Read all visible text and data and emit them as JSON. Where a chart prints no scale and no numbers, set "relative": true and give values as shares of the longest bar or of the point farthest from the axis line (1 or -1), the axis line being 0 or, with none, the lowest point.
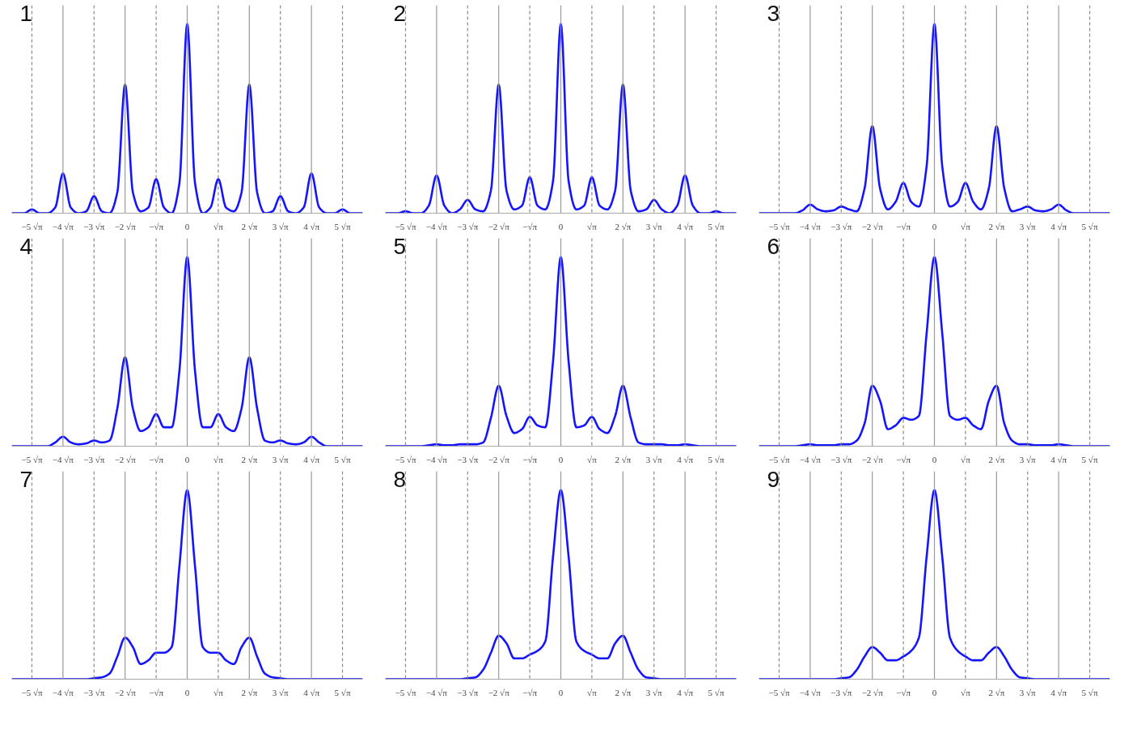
{
  "chart_data": [
    {
      "type": "line",
      "title": "1",
      "relative": true,
      "grid": false,
      "xlim": [
        -5.65,
        5.65
      ],
      "xticks": [
        {
          "value": -5,
          "label": "−5 √π"
        },
        {
          "value": -4,
          "label": "−4 √π"
        },
        {
          "value": -3,
          "label": "−3 √π"
        },
        {
          "value": -2,
          "label": "−2 √π"
        },
        {
          "value": -1,
          "label": "−√π"
        },
        0,
        {
          "value": 1,
          "label": "√π"
        },
        {
          "value": 2,
          "label": "2 √π"
        },
        {
          "value": 3,
          "label": "3 √π"
        },
        {
          "value": 4,
          "label": "4 √π"
        },
        {
          "value": 5,
          "label": "5 √π"
        }
      ],
      "ref_lines": [
        {
          "axis": "x",
          "value": -5,
          "line_style": "dashed",
          "color": "#888888"
        },
        {
          "axis": "x",
          "value": -4,
          "line_style": "solid",
          "color": "#999999"
        },
        {
          "axis": "x",
          "value": -3,
          "line_style": "dashed",
          "color": "#888888"
        },
        {
          "axis": "x",
          "value": -2,
          "line_style": "solid",
          "color": "#999999"
        },
        {
          "axis": "x",
          "value": -1,
          "line_style": "dashed",
          "color": "#888888"
        },
        {
          "axis": "x",
          "value": 0,
          "line_style": "solid",
          "color": "#999999"
        },
        {
          "axis": "x",
          "value": 1,
          "line_style": "dashed",
          "color": "#888888"
        },
        {
          "axis": "x",
          "value": 2,
          "line_style": "solid",
          "color": "#999999"
        },
        {
          "axis": "x",
          "value": 3,
          "line_style": "dashed",
          "color": "#888888"
        },
        {
          "axis": "x",
          "value": 4,
          "line_style": "solid",
          "color": "#999999"
        },
        {
          "axis": "x",
          "value": 5,
          "line_style": "dashed",
          "color": "#888888"
        }
      ],
      "x": [
        -5.65,
        -5.5,
        -5.25,
        -5,
        -4.75,
        -4.5,
        -4.25,
        -4,
        -3.75,
        -3.5,
        -3.25,
        -3,
        -2.75,
        -2.5,
        -2.25,
        -2,
        -1.75,
        -1.5,
        -1.25,
        -1,
        -0.75,
        -0.5,
        -0.25,
        0,
        0.25,
        0.5,
        0.75,
        1,
        1.25,
        1.5,
        1.75,
        2,
        2.25,
        2.5,
        2.75,
        3,
        3.25,
        3.5,
        3.75,
        4,
        4.25,
        4.5,
        4.75,
        5,
        5.25,
        5.5,
        5.65
      ],
      "series": [
        {
          "color": "#1414ff",
          "values": [
            0,
            0,
            0,
            0.02,
            0,
            0,
            0.03,
            0.21,
            0.03,
            0,
            0.01,
            0.09,
            0.01,
            0,
            0.11,
            0.68,
            0.11,
            0.01,
            0.03,
            0.18,
            0.03,
            0,
            0.16,
            1,
            0.16,
            0,
            0.03,
            0.18,
            0.03,
            0.01,
            0.11,
            0.68,
            0.11,
            0,
            0.01,
            0.09,
            0.01,
            0,
            0.03,
            0.21,
            0.03,
            0,
            0,
            0.02,
            0,
            0,
            0
          ]
        }
      ]
    },
    {
      "type": "line",
      "title": "2",
      "relative": true,
      "grid": false,
      "xlim": [
        -5.65,
        5.65
      ],
      "xticks": [
        {
          "value": -5,
          "label": "−5 √π"
        },
        {
          "value": -4,
          "label": "−4 √π"
        },
        {
          "value": -3,
          "label": "−3 √π"
        },
        {
          "value": -2,
          "label": "−2 √π"
        },
        {
          "value": -1,
          "label": "−√π"
        },
        0,
        {
          "value": 1,
          "label": "√π"
        },
        {
          "value": 2,
          "label": "2 √π"
        },
        {
          "value": 3,
          "label": "3 √π"
        },
        {
          "value": 4,
          "label": "4 √π"
        },
        {
          "value": 5,
          "label": "5 √π"
        }
      ],
      "ref_lines": [
        {
          "axis": "x",
          "value": -5,
          "line_style": "dashed",
          "color": "#888888"
        },
        {
          "axis": "x",
          "value": -4,
          "line_style": "solid",
          "color": "#999999"
        },
        {
          "axis": "x",
          "value": -3,
          "line_style": "dashed",
          "color": "#888888"
        },
        {
          "axis": "x",
          "value": -2,
          "line_style": "solid",
          "color": "#999999"
        },
        {
          "axis": "x",
          "value": -1,
          "line_style": "dashed",
          "color": "#888888"
        },
        {
          "axis": "x",
          "value": 0,
          "line_style": "solid",
          "color": "#999999"
        },
        {
          "axis": "x",
          "value": 1,
          "line_style": "dashed",
          "color": "#888888"
        },
        {
          "axis": "x",
          "value": 2,
          "line_style": "solid",
          "color": "#999999"
        },
        {
          "axis": "x",
          "value": 3,
          "line_style": "dashed",
          "color": "#888888"
        },
        {
          "axis": "x",
          "value": 4,
          "line_style": "solid",
          "color": "#999999"
        },
        {
          "axis": "x",
          "value": 5,
          "line_style": "dashed",
          "color": "#888888"
        }
      ],
      "x": [
        -5.65,
        -5.5,
        -5.25,
        -5,
        -4.75,
        -4.5,
        -4.25,
        -4,
        -3.75,
        -3.5,
        -3.25,
        -3,
        -2.75,
        -2.5,
        -2.25,
        -2,
        -1.75,
        -1.5,
        -1.25,
        -1,
        -0.75,
        -0.5,
        -0.25,
        0,
        0.25,
        0.5,
        0.75,
        1,
        1.25,
        1.5,
        1.75,
        2,
        2.25,
        2.5,
        2.75,
        3,
        3.25,
        3.5,
        3.75,
        4,
        4.25,
        4.5,
        4.75,
        5,
        5.25,
        5.5,
        5.65
      ],
      "series": [
        {
          "color": "#1414ff",
          "values": [
            0,
            0,
            0,
            0.01,
            0,
            0,
            0.04,
            0.2,
            0.04,
            0,
            0.02,
            0.07,
            0.02,
            0.01,
            0.12,
            0.68,
            0.12,
            0.02,
            0.04,
            0.19,
            0.04,
            0.02,
            0.17,
            1,
            0.17,
            0.02,
            0.04,
            0.19,
            0.04,
            0.02,
            0.12,
            0.68,
            0.12,
            0.01,
            0.02,
            0.07,
            0.02,
            0,
            0.04,
            0.2,
            0.04,
            0,
            0,
            0.01,
            0,
            0,
            0
          ]
        }
      ]
    },
    {
      "type": "line",
      "title": "3",
      "relative": true,
      "grid": false,
      "xlim": [
        -5.65,
        5.65
      ],
      "xticks": [
        {
          "value": -5,
          "label": "−5 √π"
        },
        {
          "value": -4,
          "label": "−4 √π"
        },
        {
          "value": -3,
          "label": "−3 √π"
        },
        {
          "value": -2,
          "label": "−2 √π"
        },
        {
          "value": -1,
          "label": "−√π"
        },
        0,
        {
          "value": 1,
          "label": "√π"
        },
        {
          "value": 2,
          "label": "2 √π"
        },
        {
          "value": 3,
          "label": "3 √π"
        },
        {
          "value": 4,
          "label": "4 √π"
        },
        {
          "value": 5,
          "label": "5 √π"
        }
      ],
      "ref_lines": [
        {
          "axis": "x",
          "value": -5,
          "line_style": "dashed",
          "color": "#888888"
        },
        {
          "axis": "x",
          "value": -4,
          "line_style": "solid",
          "color": "#999999"
        },
        {
          "axis": "x",
          "value": -3,
          "line_style": "dashed",
          "color": "#888888"
        },
        {
          "axis": "x",
          "value": -2,
          "line_style": "solid",
          "color": "#999999"
        },
        {
          "axis": "x",
          "value": -1,
          "line_style": "dashed",
          "color": "#888888"
        },
        {
          "axis": "x",
          "value": 0,
          "line_style": "solid",
          "color": "#999999"
        },
        {
          "axis": "x",
          "value": 1,
          "line_style": "dashed",
          "color": "#888888"
        },
        {
          "axis": "x",
          "value": 2,
          "line_style": "solid",
          "color": "#999999"
        },
        {
          "axis": "x",
          "value": 3,
          "line_style": "dashed",
          "color": "#888888"
        },
        {
          "axis": "x",
          "value": 4,
          "line_style": "solid",
          "color": "#999999"
        },
        {
          "axis": "x",
          "value": 5,
          "line_style": "dashed",
          "color": "#888888"
        }
      ],
      "x": [
        -5.65,
        -5.5,
        -5.25,
        -5,
        -4.75,
        -4.5,
        -4.25,
        -4,
        -3.75,
        -3.5,
        -3.25,
        -3,
        -2.75,
        -2.5,
        -2.25,
        -2,
        -1.75,
        -1.5,
        -1.25,
        -1,
        -0.75,
        -0.5,
        -0.25,
        0,
        0.25,
        0.5,
        0.75,
        1,
        1.25,
        1.5,
        1.75,
        2,
        2.25,
        2.5,
        2.75,
        3,
        3.25,
        3.5,
        3.75,
        4,
        4.25,
        4.5,
        4.75,
        5,
        5.25,
        5.5,
        5.65
      ],
      "series": [
        {
          "color": "#1414ff",
          "values": [
            0,
            0,
            0,
            0,
            0,
            0,
            0.015,
            0.045,
            0.02,
            0.01,
            0.015,
            0.035,
            0.02,
            0.01,
            0.13,
            0.46,
            0.13,
            0.02,
            0.06,
            0.16,
            0.06,
            0.035,
            0.25,
            1,
            0.25,
            0.035,
            0.06,
            0.16,
            0.06,
            0.02,
            0.13,
            0.46,
            0.13,
            0.01,
            0.02,
            0.035,
            0.015,
            0.01,
            0.02,
            0.045,
            0.015,
            0,
            0,
            0,
            0,
            0,
            0
          ]
        }
      ]
    },
    {
      "type": "line",
      "title": "4",
      "relative": true,
      "grid": false,
      "xlim": [
        -5.65,
        5.65
      ],
      "xticks": [
        {
          "value": -5,
          "label": "−5 √π"
        },
        {
          "value": -4,
          "label": "−4 √π"
        },
        {
          "value": -3,
          "label": "−3 √π"
        },
        {
          "value": -2,
          "label": "−2 √π"
        },
        {
          "value": -1,
          "label": "−√π"
        },
        0,
        {
          "value": 1,
          "label": "√π"
        },
        {
          "value": 2,
          "label": "2 √π"
        },
        {
          "value": 3,
          "label": "3 √π"
        },
        {
          "value": 4,
          "label": "4 √π"
        },
        {
          "value": 5,
          "label": "5 √π"
        }
      ],
      "ref_lines": [
        {
          "axis": "x",
          "value": -5,
          "line_style": "dashed",
          "color": "#888888"
        },
        {
          "axis": "x",
          "value": -4,
          "line_style": "solid",
          "color": "#999999"
        },
        {
          "axis": "x",
          "value": -3,
          "line_style": "dashed",
          "color": "#888888"
        },
        {
          "axis": "x",
          "value": -2,
          "line_style": "solid",
          "color": "#999999"
        },
        {
          "axis": "x",
          "value": -1,
          "line_style": "dashed",
          "color": "#888888"
        },
        {
          "axis": "x",
          "value": 0,
          "line_style": "solid",
          "color": "#999999"
        },
        {
          "axis": "x",
          "value": 1,
          "line_style": "dashed",
          "color": "#888888"
        },
        {
          "axis": "x",
          "value": 2,
          "line_style": "solid",
          "color": "#999999"
        },
        {
          "axis": "x",
          "value": 3,
          "line_style": "dashed",
          "color": "#888888"
        },
        {
          "axis": "x",
          "value": 4,
          "line_style": "solid",
          "color": "#999999"
        },
        {
          "axis": "x",
          "value": 5,
          "line_style": "dashed",
          "color": "#888888"
        }
      ],
      "x": [
        -5.65,
        -5.5,
        -5.25,
        -5,
        -4.75,
        -4.5,
        -4.25,
        -4,
        -3.75,
        -3.5,
        -3.25,
        -3,
        -2.75,
        -2.5,
        -2.25,
        -2,
        -1.75,
        -1.5,
        -1.25,
        -1,
        -0.75,
        -0.5,
        -0.25,
        0,
        0.25,
        0.5,
        0.75,
        1,
        1.25,
        1.5,
        1.75,
        2,
        2.25,
        2.5,
        2.75,
        3,
        3.25,
        3.5,
        3.75,
        4,
        4.25,
        4.5,
        4.75,
        5,
        5.25,
        5.5,
        5.65
      ],
      "series": [
        {
          "color": "#1414ff",
          "values": [
            0,
            0,
            0,
            0,
            0,
            0,
            0.02,
            0.05,
            0.02,
            0.01,
            0.015,
            0.03,
            0.02,
            0.03,
            0.2,
            0.47,
            0.2,
            0.08,
            0.1,
            0.17,
            0.1,
            0.1,
            0.4,
            1,
            0.4,
            0.1,
            0.1,
            0.17,
            0.1,
            0.08,
            0.2,
            0.47,
            0.2,
            0.03,
            0.02,
            0.03,
            0.015,
            0.01,
            0.02,
            0.05,
            0.02,
            0,
            0,
            0,
            0,
            0,
            0
          ]
        }
      ]
    },
    {
      "type": "line",
      "title": "5",
      "relative": true,
      "grid": false,
      "xlim": [
        -5.65,
        5.65
      ],
      "xticks": [
        {
          "value": -5,
          "label": "−5 √π"
        },
        {
          "value": -4,
          "label": "−4 √π"
        },
        {
          "value": -3,
          "label": "−3 √π"
        },
        {
          "value": -2,
          "label": "−2 √π"
        },
        {
          "value": -1,
          "label": "−√π"
        },
        0,
        {
          "value": 1,
          "label": "√π"
        },
        {
          "value": 2,
          "label": "2 √π"
        },
        {
          "value": 3,
          "label": "3 √π"
        },
        {
          "value": 4,
          "label": "4 √π"
        },
        {
          "value": 5,
          "label": "5 √π"
        }
      ],
      "ref_lines": [
        {
          "axis": "x",
          "value": -5,
          "line_style": "dashed",
          "color": "#888888"
        },
        {
          "axis": "x",
          "value": -4,
          "line_style": "solid",
          "color": "#999999"
        },
        {
          "axis": "x",
          "value": -3,
          "line_style": "dashed",
          "color": "#888888"
        },
        {
          "axis": "x",
          "value": -2,
          "line_style": "solid",
          "color": "#999999"
        },
        {
          "axis": "x",
          "value": -1,
          "line_style": "dashed",
          "color": "#888888"
        },
        {
          "axis": "x",
          "value": 0,
          "line_style": "solid",
          "color": "#999999"
        },
        {
          "axis": "x",
          "value": 1,
          "line_style": "dashed",
          "color": "#888888"
        },
        {
          "axis": "x",
          "value": 2,
          "line_style": "solid",
          "color": "#999999"
        },
        {
          "axis": "x",
          "value": 3,
          "line_style": "dashed",
          "color": "#888888"
        },
        {
          "axis": "x",
          "value": 4,
          "line_style": "solid",
          "color": "#999999"
        },
        {
          "axis": "x",
          "value": 5,
          "line_style": "dashed",
          "color": "#888888"
        }
      ],
      "x": [
        -5.65,
        -5.5,
        -5.25,
        -5,
        -4.75,
        -4.5,
        -4.25,
        -4,
        -3.75,
        -3.5,
        -3.25,
        -3,
        -2.75,
        -2.5,
        -2.25,
        -2,
        -1.75,
        -1.5,
        -1.25,
        -1,
        -0.75,
        -0.5,
        -0.25,
        0,
        0.25,
        0.5,
        0.75,
        1,
        1.25,
        1.5,
        1.75,
        2,
        2.25,
        2.5,
        2.75,
        3,
        3.25,
        3.5,
        3.75,
        4,
        4.25,
        4.5,
        4.75,
        5,
        5.25,
        5.5,
        5.65
      ],
      "series": [
        {
          "color": "#1414ff",
          "values": [
            0,
            0,
            0,
            0,
            0,
            0,
            0.005,
            0.01,
            0.005,
            0.005,
            0.01,
            0.01,
            0.01,
            0.02,
            0.15,
            0.32,
            0.16,
            0.07,
            0.09,
            0.155,
            0.11,
            0.1,
            0.45,
            1,
            0.45,
            0.1,
            0.11,
            0.155,
            0.09,
            0.07,
            0.16,
            0.32,
            0.15,
            0.02,
            0.01,
            0.01,
            0.01,
            0.005,
            0.005,
            0.01,
            0.005,
            0,
            0,
            0,
            0,
            0,
            0
          ]
        }
      ]
    },
    {
      "type": "line",
      "title": "6",
      "relative": true,
      "grid": false,
      "xlim": [
        -5.65,
        5.65
      ],
      "xticks": [
        {
          "value": -5,
          "label": "−5 √π"
        },
        {
          "value": -4,
          "label": "−4 √π"
        },
        {
          "value": -3,
          "label": "−3 √π"
        },
        {
          "value": -2,
          "label": "−2 √π"
        },
        {
          "value": -1,
          "label": "−√π"
        },
        0,
        {
          "value": 1,
          "label": "√π"
        },
        {
          "value": 2,
          "label": "2 √π"
        },
        {
          "value": 3,
          "label": "3 √π"
        },
        {
          "value": 4,
          "label": "4 √π"
        },
        {
          "value": 5,
          "label": "5 √π"
        }
      ],
      "ref_lines": [
        {
          "axis": "x",
          "value": -5,
          "line_style": "dashed",
          "color": "#888888"
        },
        {
          "axis": "x",
          "value": -4,
          "line_style": "solid",
          "color": "#999999"
        },
        {
          "axis": "x",
          "value": -3,
          "line_style": "dashed",
          "color": "#888888"
        },
        {
          "axis": "x",
          "value": -2,
          "line_style": "solid",
          "color": "#999999"
        },
        {
          "axis": "x",
          "value": -1,
          "line_style": "dashed",
          "color": "#888888"
        },
        {
          "axis": "x",
          "value": 0,
          "line_style": "solid",
          "color": "#999999"
        },
        {
          "axis": "x",
          "value": 1,
          "line_style": "dashed",
          "color": "#888888"
        },
        {
          "axis": "x",
          "value": 2,
          "line_style": "solid",
          "color": "#999999"
        },
        {
          "axis": "x",
          "value": 3,
          "line_style": "dashed",
          "color": "#888888"
        },
        {
          "axis": "x",
          "value": 4,
          "line_style": "solid",
          "color": "#999999"
        },
        {
          "axis": "x",
          "value": 5,
          "line_style": "dashed",
          "color": "#888888"
        }
      ],
      "x": [
        -5.65,
        -5.5,
        -5.25,
        -5,
        -4.75,
        -4.5,
        -4.25,
        -4,
        -3.75,
        -3.5,
        -3.25,
        -3,
        -2.75,
        -2.5,
        -2.25,
        -2,
        -1.75,
        -1.5,
        -1.25,
        -1,
        -0.75,
        -0.5,
        -0.25,
        0,
        0.25,
        0.5,
        0.75,
        1,
        1.25,
        1.5,
        1.75,
        2,
        2.25,
        2.5,
        2.75,
        3,
        3.25,
        3.5,
        3.75,
        4,
        4.25,
        4.5,
        4.75,
        5,
        5.25,
        5.5,
        5.65
      ],
      "series": [
        {
          "color": "#1414ff",
          "values": [
            0,
            0,
            0,
            0,
            0,
            0,
            0.005,
            0.01,
            0.005,
            0.005,
            0.005,
            0.01,
            0.01,
            0.03,
            0.12,
            0.32,
            0.24,
            0.09,
            0.11,
            0.15,
            0.14,
            0.16,
            0.6,
            1,
            0.6,
            0.16,
            0.14,
            0.15,
            0.11,
            0.09,
            0.24,
            0.32,
            0.12,
            0.03,
            0.01,
            0.01,
            0.005,
            0.005,
            0.005,
            0.01,
            0.005,
            0,
            0,
            0,
            0,
            0,
            0
          ]
        }
      ]
    },
    {
      "type": "line",
      "title": "7",
      "relative": true,
      "grid": false,
      "xlim": [
        -5.65,
        5.65
      ],
      "xticks": [
        {
          "value": -5,
          "label": "−5 √π"
        },
        {
          "value": -4,
          "label": "−4 √π"
        },
        {
          "value": -3,
          "label": "−3 √π"
        },
        {
          "value": -2,
          "label": "−2 √π"
        },
        {
          "value": -1,
          "label": "−√π"
        },
        0,
        {
          "value": 1,
          "label": "√π"
        },
        {
          "value": 2,
          "label": "2 √π"
        },
        {
          "value": 3,
          "label": "3 √π"
        },
        {
          "value": 4,
          "label": "4 √π"
        },
        {
          "value": 5,
          "label": "5 √π"
        }
      ],
      "ref_lines": [
        {
          "axis": "x",
          "value": -5,
          "line_style": "dashed",
          "color": "#888888"
        },
        {
          "axis": "x",
          "value": -4,
          "line_style": "solid",
          "color": "#999999"
        },
        {
          "axis": "x",
          "value": -3,
          "line_style": "dashed",
          "color": "#888888"
        },
        {
          "axis": "x",
          "value": -2,
          "line_style": "solid",
          "color": "#999999"
        },
        {
          "axis": "x",
          "value": -1,
          "line_style": "dashed",
          "color": "#888888"
        },
        {
          "axis": "x",
          "value": 0,
          "line_style": "solid",
          "color": "#999999"
        },
        {
          "axis": "x",
          "value": 1,
          "line_style": "dashed",
          "color": "#888888"
        },
        {
          "axis": "x",
          "value": 2,
          "line_style": "solid",
          "color": "#999999"
        },
        {
          "axis": "x",
          "value": 3,
          "line_style": "dashed",
          "color": "#888888"
        },
        {
          "axis": "x",
          "value": 4,
          "line_style": "solid",
          "color": "#999999"
        },
        {
          "axis": "x",
          "value": 5,
          "line_style": "dashed",
          "color": "#888888"
        }
      ],
      "x": [
        -5.65,
        -5.5,
        -5.25,
        -5,
        -4.75,
        -4.5,
        -4.25,
        -4,
        -3.75,
        -3.5,
        -3.25,
        -3,
        -2.75,
        -2.5,
        -2.25,
        -2,
        -1.75,
        -1.5,
        -1.25,
        -1,
        -0.75,
        -0.5,
        -0.25,
        0,
        0.25,
        0.5,
        0.75,
        1,
        1.25,
        1.5,
        1.75,
        2,
        2.25,
        2.5,
        2.75,
        3,
        3.25,
        3.5,
        3.75,
        4,
        4.25,
        4.5,
        4.75,
        5,
        5.25,
        5.5,
        5.65
      ],
      "series": [
        {
          "color": "#1414ff",
          "values": [
            0,
            0,
            0,
            0,
            0,
            0,
            0,
            0,
            0,
            0,
            0,
            0.005,
            0.01,
            0.03,
            0.12,
            0.22,
            0.17,
            0.08,
            0.1,
            0.14,
            0.14,
            0.17,
            0.6,
            1,
            0.6,
            0.17,
            0.14,
            0.14,
            0.1,
            0.08,
            0.17,
            0.22,
            0.12,
            0.03,
            0.01,
            0.005,
            0,
            0,
            0,
            0,
            0,
            0,
            0,
            0,
            0,
            0,
            0
          ]
        }
      ]
    },
    {
      "type": "line",
      "title": "8",
      "relative": true,
      "grid": false,
      "xlim": [
        -5.65,
        5.65
      ],
      "xticks": [
        {
          "value": -5,
          "label": "−5 √π"
        },
        {
          "value": -4,
          "label": "−4 √π"
        },
        {
          "value": -3,
          "label": "−3 √π"
        },
        {
          "value": -2,
          "label": "−2 √π"
        },
        {
          "value": -1,
          "label": "−√π"
        },
        0,
        {
          "value": 1,
          "label": "√π"
        },
        {
          "value": 2,
          "label": "2 √π"
        },
        {
          "value": 3,
          "label": "3 √π"
        },
        {
          "value": 4,
          "label": "4 √π"
        },
        {
          "value": 5,
          "label": "5 √π"
        }
      ],
      "ref_lines": [
        {
          "axis": "x",
          "value": -5,
          "line_style": "dashed",
          "color": "#888888"
        },
        {
          "axis": "x",
          "value": -4,
          "line_style": "solid",
          "color": "#999999"
        },
        {
          "axis": "x",
          "value": -3,
          "line_style": "dashed",
          "color": "#888888"
        },
        {
          "axis": "x",
          "value": -2,
          "line_style": "solid",
          "color": "#999999"
        },
        {
          "axis": "x",
          "value": -1,
          "line_style": "dashed",
          "color": "#888888"
        },
        {
          "axis": "x",
          "value": 0,
          "line_style": "solid",
          "color": "#999999"
        },
        {
          "axis": "x",
          "value": 1,
          "line_style": "dashed",
          "color": "#888888"
        },
        {
          "axis": "x",
          "value": 2,
          "line_style": "solid",
          "color": "#999999"
        },
        {
          "axis": "x",
          "value": 3,
          "line_style": "dashed",
          "color": "#888888"
        },
        {
          "axis": "x",
          "value": 4,
          "line_style": "solid",
          "color": "#999999"
        },
        {
          "axis": "x",
          "value": 5,
          "line_style": "dashed",
          "color": "#888888"
        }
      ],
      "x": [
        -5.65,
        -5.5,
        -5.25,
        -5,
        -4.75,
        -4.5,
        -4.25,
        -4,
        -3.75,
        -3.5,
        -3.25,
        -3,
        -2.75,
        -2.5,
        -2.25,
        -2,
        -1.75,
        -1.5,
        -1.25,
        -1,
        -0.75,
        -0.5,
        -0.25,
        0,
        0.25,
        0.5,
        0.75,
        1,
        1.25,
        1.5,
        1.75,
        2,
        2.25,
        2.5,
        2.75,
        3,
        3.25,
        3.5,
        3.75,
        4,
        4.25,
        4.5,
        4.75,
        5,
        5.25,
        5.5,
        5.65
      ],
      "series": [
        {
          "color": "#1414ff",
          "values": [
            0,
            0,
            0,
            0,
            0,
            0,
            0,
            0,
            0,
            0,
            0,
            0.005,
            0.01,
            0.05,
            0.14,
            0.23,
            0.19,
            0.11,
            0.11,
            0.13,
            0.15,
            0.2,
            0.65,
            1,
            0.65,
            0.2,
            0.15,
            0.13,
            0.11,
            0.11,
            0.19,
            0.23,
            0.14,
            0.05,
            0.01,
            0.005,
            0,
            0,
            0,
            0,
            0,
            0,
            0,
            0,
            0,
            0,
            0
          ]
        }
      ]
    },
    {
      "type": "line",
      "title": "9",
      "relative": true,
      "grid": false,
      "xlim": [
        -5.65,
        5.65
      ],
      "xticks": [
        {
          "value": -5,
          "label": "−5 √π"
        },
        {
          "value": -4,
          "label": "−4 √π"
        },
        {
          "value": -3,
          "label": "−3 √π"
        },
        {
          "value": -2,
          "label": "−2 √π"
        },
        {
          "value": -1,
          "label": "−√π"
        },
        0,
        {
          "value": 1,
          "label": "√π"
        },
        {
          "value": 2,
          "label": "2 √π"
        },
        {
          "value": 3,
          "label": "3 √π"
        },
        {
          "value": 4,
          "label": "4 √π"
        },
        {
          "value": 5,
          "label": "5 √π"
        }
      ],
      "ref_lines": [
        {
          "axis": "x",
          "value": -5,
          "line_style": "dashed",
          "color": "#888888"
        },
        {
          "axis": "x",
          "value": -4,
          "line_style": "solid",
          "color": "#999999"
        },
        {
          "axis": "x",
          "value": -3,
          "line_style": "dashed",
          "color": "#888888"
        },
        {
          "axis": "x",
          "value": -2,
          "line_style": "solid",
          "color": "#999999"
        },
        {
          "axis": "x",
          "value": -1,
          "line_style": "dashed",
          "color": "#888888"
        },
        {
          "axis": "x",
          "value": 0,
          "line_style": "solid",
          "color": "#999999"
        },
        {
          "axis": "x",
          "value": 1,
          "line_style": "dashed",
          "color": "#888888"
        },
        {
          "axis": "x",
          "value": 2,
          "line_style": "solid",
          "color": "#999999"
        },
        {
          "axis": "x",
          "value": 3,
          "line_style": "dashed",
          "color": "#888888"
        },
        {
          "axis": "x",
          "value": 4,
          "line_style": "solid",
          "color": "#999999"
        },
        {
          "axis": "x",
          "value": 5,
          "line_style": "dashed",
          "color": "#888888"
        }
      ],
      "x": [
        -5.65,
        -5.5,
        -5.25,
        -5,
        -4.75,
        -4.5,
        -4.25,
        -4,
        -3.75,
        -3.5,
        -3.25,
        -3,
        -2.75,
        -2.5,
        -2.25,
        -2,
        -1.75,
        -1.5,
        -1.25,
        -1,
        -0.75,
        -0.5,
        -0.25,
        0,
        0.25,
        0.5,
        0.75,
        1,
        1.25,
        1.5,
        1.75,
        2,
        2.25,
        2.5,
        2.75,
        3,
        3.25,
        3.5,
        3.75,
        4,
        4.25,
        4.5,
        4.75,
        5,
        5.25,
        5.5,
        5.65
      ],
      "series": [
        {
          "color": "#1414ff",
          "values": [
            0,
            0,
            0,
            0,
            0,
            0,
            0,
            0,
            0,
            0,
            0,
            0.005,
            0.01,
            0.05,
            0.12,
            0.17,
            0.14,
            0.1,
            0.1,
            0.12,
            0.15,
            0.22,
            0.65,
            1,
            0.65,
            0.22,
            0.15,
            0.12,
            0.1,
            0.1,
            0.14,
            0.17,
            0.12,
            0.05,
            0.01,
            0.005,
            0,
            0,
            0,
            0,
            0,
            0,
            0,
            0,
            0,
            0,
            0
          ]
        }
      ]
    }
  ]
}
